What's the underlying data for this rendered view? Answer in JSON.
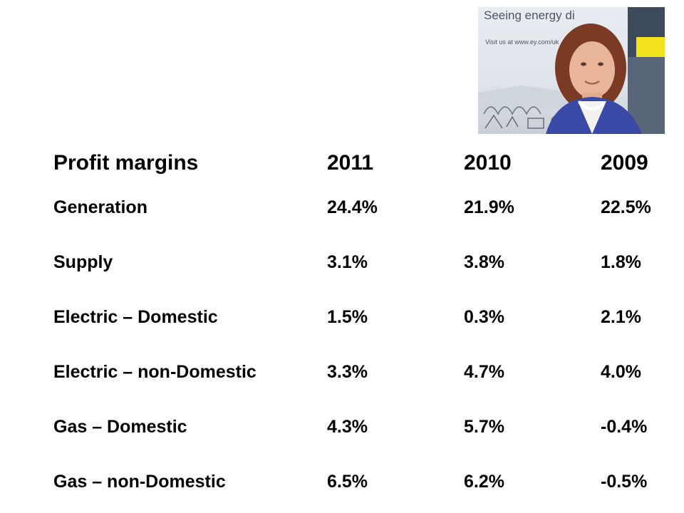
{
  "photo": {
    "banner_text": "Seeing energy di",
    "banner_url": "Visit us at www.ey.com/uk"
  },
  "table": {
    "headers": [
      "Profit margins",
      "2011",
      "2010",
      "2009"
    ],
    "rows": [
      {
        "label": "Generation",
        "y2011": "24.4%",
        "y2010": "21.9%",
        "y2009": "22.5%"
      },
      {
        "label": "Supply",
        "y2011": "3.1%",
        "y2010": "3.8%",
        "y2009": "1.8%"
      },
      {
        "label": "Electric – Domestic",
        "y2011": "1.5%",
        "y2010": "0.3%",
        "y2009": "2.1%"
      },
      {
        "label": "Electric – non-Domestic",
        "y2011": "3.3%",
        "y2010": "4.7%",
        "y2009": "4.0%"
      },
      {
        "label": "Gas – Domestic",
        "y2011": "4.3%",
        "y2010": "5.7%",
        "y2009": "-0.4%"
      },
      {
        "label": "Gas – non-Domestic",
        "y2011": "6.5%",
        "y2010": "6.2%",
        "y2009": "-0.5%"
      }
    ]
  }
}
